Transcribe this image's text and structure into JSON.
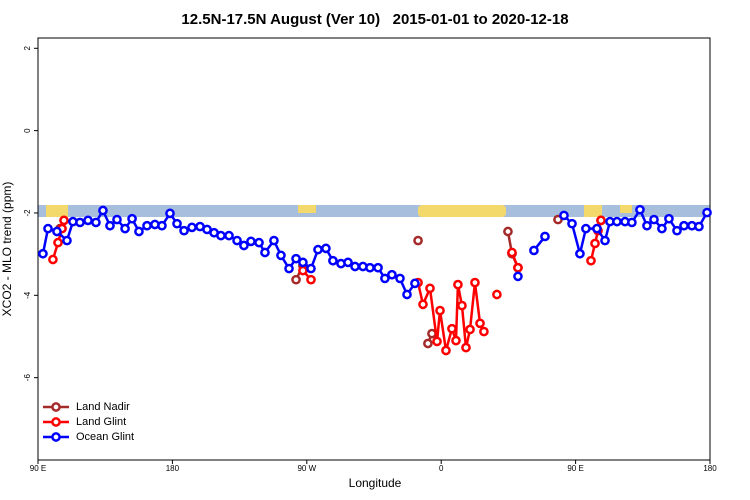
{
  "chart_data": {
    "type": "line",
    "title": "12.5N-17.5N August (Ver 10)   2015-01-01 to 2020-12-18",
    "x_label": "Longitude",
    "y_label": "XCO2 - MLO trend (ppm)",
    "xlim": [
      90,
      540
    ],
    "ylim": [
      -8,
      2.25
    ],
    "xticks": [
      {
        "value": 90,
        "label": "90 E"
      },
      {
        "value": 180,
        "label": "180"
      },
      {
        "value": 270,
        "label": "90 W"
      },
      {
        "value": 360,
        "label": "0"
      },
      {
        "value": 450,
        "label": "90 E"
      },
      {
        "value": 540,
        "label": "180"
      }
    ],
    "yticks": [
      2,
      0,
      -2,
      -4,
      -6
    ],
    "legend": "bottom-left",
    "series": [
      {
        "name": "Land Nadir",
        "color": "#a52a2a",
        "x": [
          104.7,
          null,
          262.8,
          267.4,
          null,
          344.5,
          null,
          351.1,
          353.8,
          null,
          404.7,
          407.4,
          411.4,
          null,
          438.2,
          null,
          464.3,
          467.0
        ],
        "values": [
          -2.38,
          null,
          -3.62,
          -3.28,
          null,
          -2.67,
          null,
          -5.17,
          -4.93,
          null,
          -2.45,
          -2.99,
          -3.33,
          null,
          -2.16,
          null,
          -2.38,
          -2.18
        ]
      },
      {
        "name": "Land Glint",
        "color": "#ff0000",
        "x": [
          100.0,
          103.4,
          106.1,
          107.4,
          null,
          267.4,
          272.8,
          null,
          344.5,
          347.8,
          352.5,
          357.2,
          359.2,
          363.2,
          367.2,
          369.9,
          371.2,
          373.9,
          376.6,
          379.3,
          382.6,
          386.0,
          388.6,
          null,
          397.3,
          null,
          407.4,
          411.4,
          null,
          460.3,
          463.0,
          465.0,
          467.0
        ],
        "values": [
          -3.13,
          -2.72,
          -2.38,
          -2.18,
          null,
          -3.4,
          -3.62,
          null,
          -3.69,
          -4.22,
          -3.83,
          -5.12,
          -4.37,
          -5.34,
          -4.81,
          -5.1,
          -3.74,
          -4.25,
          -5.27,
          -4.83,
          -3.69,
          -4.68,
          -4.88,
          null,
          -3.98,
          null,
          -2.96,
          -3.33,
          null,
          -3.16,
          -2.74,
          -2.43,
          -2.18
        ]
      },
      {
        "name": "Ocean Glint",
        "color": "#0000ff",
        "x": [
          93.3,
          96.7,
          102.7,
          109.4,
          113.4,
          118.1,
          123.5,
          128.8,
          133.5,
          138.2,
          142.9,
          148.3,
          153.0,
          157.6,
          163.0,
          168.3,
          173.0,
          178.4,
          183.1,
          187.8,
          193.1,
          198.5,
          203.2,
          207.9,
          212.5,
          217.9,
          223.3,
          227.9,
          232.6,
          238.0,
          242.0,
          248.0,
          252.7,
          258.1,
          262.8,
          267.4,
          272.8,
          277.5,
          282.8,
          287.5,
          292.9,
          297.6,
          302.3,
          307.6,
          312.3,
          317.7,
          322.3,
          327.0,
          332.4,
          337.1,
          342.4,
          null,
          411.4,
          null,
          422.1,
          429.5,
          null,
          442.2,
          447.6,
          452.9,
          456.9,
          464.3,
          469.7,
          473.0,
          477.7,
          483.1,
          487.7,
          493.1,
          497.8,
          502.5,
          507.8,
          512.5,
          517.9,
          522.6,
          527.9,
          532.6,
          538.0
        ],
        "values": [
          -2.99,
          -2.38,
          -2.45,
          -2.67,
          -2.21,
          -2.23,
          -2.18,
          -2.23,
          -1.94,
          -2.31,
          -2.16,
          -2.38,
          -2.14,
          -2.45,
          -2.31,
          -2.28,
          -2.31,
          -2.01,
          -2.26,
          -2.43,
          -2.35,
          -2.33,
          -2.4,
          -2.48,
          -2.55,
          -2.55,
          -2.67,
          -2.79,
          -2.69,
          -2.72,
          -2.96,
          -2.67,
          -3.03,
          -3.35,
          -3.11,
          -3.2,
          -3.35,
          -2.89,
          -2.86,
          -3.16,
          -3.23,
          -3.2,
          -3.3,
          -3.3,
          -3.33,
          -3.33,
          -3.59,
          -3.5,
          -3.59,
          -3.98,
          -3.71,
          null,
          -3.54,
          null,
          -2.91,
          -2.57,
          null,
          -2.06,
          -2.26,
          -2.99,
          -2.38,
          -2.38,
          -2.67,
          -2.21,
          -2.21,
          -2.21,
          -2.23,
          -1.92,
          -2.31,
          -2.16,
          -2.38,
          -2.14,
          -2.43,
          -2.31,
          -2.31,
          -2.33,
          -1.99
        ]
      }
    ]
  }
}
